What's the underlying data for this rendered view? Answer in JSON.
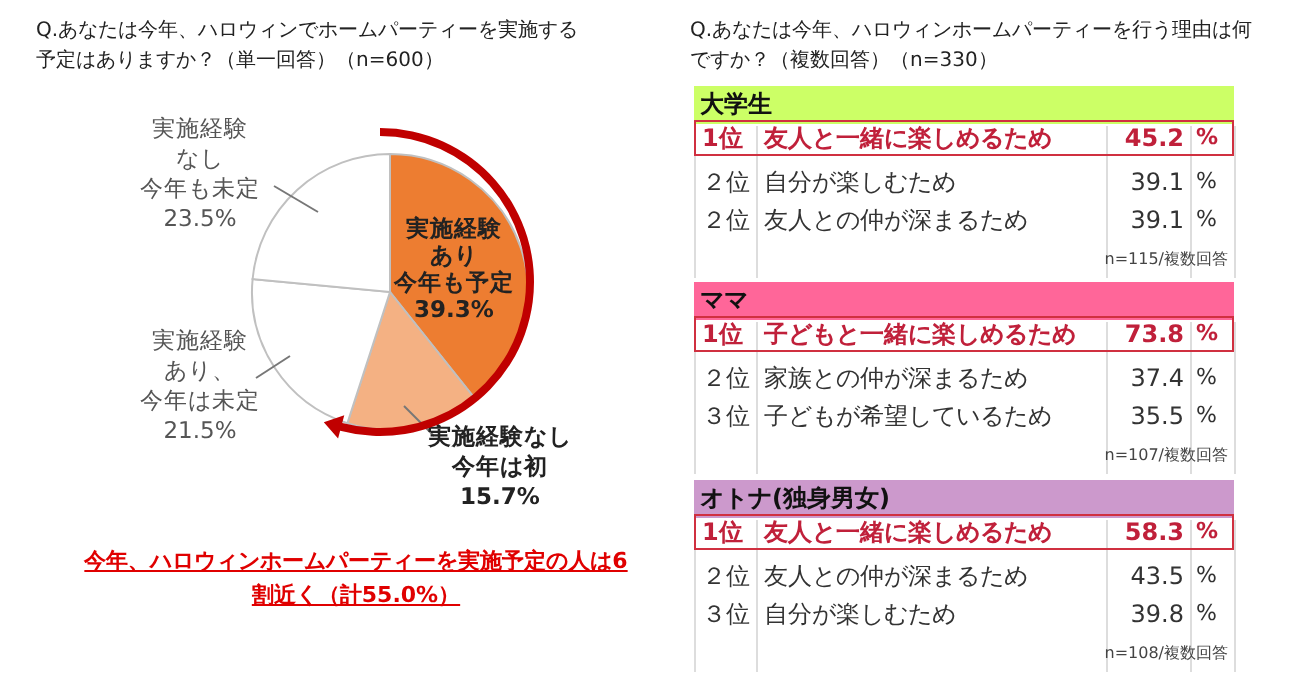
{
  "chart_data": [
    {
      "type": "pie",
      "title": "Q.あなたは今年、ハロウィンでホームパーティーを実施する予定はありますか？（単一回答）（n=600）",
      "categories": [
        "実施経験あり今年も予定",
        "実施経験なし今年は初",
        "実施経験あり、今年は未定",
        "実施経験なし今年も未定"
      ],
      "values": [
        39.3,
        15.7,
        21.5,
        23.5
      ],
      "value_labels": [
        "39.3%",
        "15.7%",
        "21.5%",
        "23.5%"
      ],
      "colors": [
        "#ed7d31",
        "#f4b183",
        "#ffffff",
        "#ffffff"
      ],
      "annotations": [
        "今年、ハロウィンホームパーティーを実施予定の人は6割近く（計55.0%）"
      ]
    },
    {
      "type": "other",
      "title": "Q.あなたは今年、ハロウィンホームパーティーを行う理由は何ですか？（複数回答）（n=330）",
      "colors": [
        "#ccff66",
        "#ff6699",
        "#cc99cc"
      ],
      "annotations": [
        "大学生",
        "1位",
        "友人と一緒に楽しめるため",
        "45.2",
        "%",
        "２位",
        "自分が楽しむため",
        "39.1",
        "%",
        "２位",
        "友人との仲が深まるため",
        "39.1",
        "%",
        "n=115/複数回答",
        "ママ",
        "1位",
        "子どもと一緒に楽しめるため",
        "73.8",
        "%",
        "２位",
        "家族との仲が深まるため",
        "37.4",
        "%",
        "３位",
        "子どもが希望しているため",
        "35.5",
        "%",
        "n=107/複数回答",
        "オトナ(独身男女)",
        "1位",
        "友人と一緒に楽しめるため",
        "58.3",
        "%",
        "２位",
        "友人との仲が深まるため",
        "43.5",
        "%",
        "３位",
        "自分が楽しむため",
        "39.8",
        "%",
        "n=108/複数回答"
      ]
    }
  ]
}
